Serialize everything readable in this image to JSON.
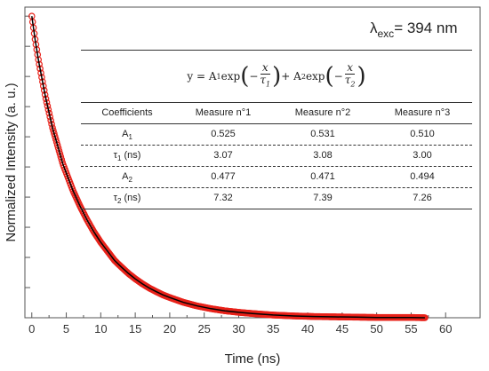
{
  "excitation": {
    "lambda": "λ",
    "subscript": "exc",
    "value": "= 394 nm"
  },
  "equation": {
    "lhs": "y = A",
    "a1_sub": "1",
    "exp1": " exp",
    "x1": "x",
    "tau1": "τ",
    "tau1_sub": "1",
    "plus": " + A",
    "a2_sub": "2",
    "exp2": " exp",
    "x2": "x",
    "tau2": "τ",
    "tau2_sub": "2"
  },
  "table": {
    "headers": [
      "Coefficients",
      "Measure n°1",
      "Measure n°2",
      "Measure n°3"
    ],
    "rows": [
      {
        "label": "A",
        "sub": "1",
        "unit": "",
        "values": [
          "0.525",
          "0.531",
          "0.510"
        ]
      },
      {
        "label": "τ",
        "sub": "1",
        "unit": " (ns)",
        "values": [
          "3.07",
          "3.08",
          "3.00"
        ]
      },
      {
        "label": "A",
        "sub": "2",
        "unit": "",
        "values": [
          "0.477",
          "0.471",
          "0.494"
        ]
      },
      {
        "label": "τ",
        "sub": "2",
        "unit": " (ns)",
        "values": [
          "7.32",
          "7.39",
          "7.26"
        ]
      }
    ]
  },
  "chart_data": {
    "type": "scatter",
    "xlabel": "Time (ns)",
    "ylabel": "Normalized Intensity (a. u.)",
    "xlim": [
      -1,
      65
    ],
    "ylim": [
      0,
      1.03
    ],
    "xticks": [
      "0",
      "5",
      "10",
      "15",
      "20",
      "25",
      "30",
      "35",
      "40",
      "45",
      "50",
      "55",
      "60"
    ],
    "show_yticks_labels": false,
    "series": [
      {
        "style": "markers",
        "color": "#e8221a",
        "x": [
          0,
          0.5,
          1,
          1.5,
          2,
          2.5,
          3,
          3.5,
          4,
          4.5,
          5,
          6,
          7,
          8,
          9,
          10,
          11,
          12,
          13,
          14,
          15,
          16,
          17,
          18,
          19,
          20,
          22,
          24,
          26,
          28,
          30,
          32,
          35,
          38,
          41,
          44,
          47,
          50,
          53,
          55,
          57
        ],
        "y": [
          1.0,
          0.92,
          0.85,
          0.79,
          0.73,
          0.68,
          0.63,
          0.59,
          0.55,
          0.51,
          0.48,
          0.42,
          0.37,
          0.325,
          0.285,
          0.25,
          0.22,
          0.19,
          0.168,
          0.147,
          0.129,
          0.113,
          0.099,
          0.087,
          0.076,
          0.067,
          0.051,
          0.039,
          0.03,
          0.023,
          0.018,
          0.014,
          0.009,
          0.006,
          0.004,
          0.003,
          0.002,
          0.001,
          0.001,
          0.001,
          0.0
        ]
      },
      {
        "style": "line",
        "color": "#000000",
        "x": [
          0,
          0.5,
          1,
          1.5,
          2,
          2.5,
          3,
          3.5,
          4,
          4.5,
          5,
          6,
          7,
          8,
          9,
          10,
          11,
          12,
          13,
          14,
          15,
          16,
          17,
          18,
          19,
          20,
          22,
          24,
          26,
          28,
          30,
          32,
          35,
          38,
          41,
          44,
          47,
          50,
          53,
          55,
          57
        ],
        "y": [
          1.0,
          0.92,
          0.85,
          0.79,
          0.73,
          0.68,
          0.63,
          0.59,
          0.55,
          0.51,
          0.48,
          0.42,
          0.37,
          0.325,
          0.285,
          0.25,
          0.22,
          0.19,
          0.168,
          0.147,
          0.129,
          0.113,
          0.099,
          0.087,
          0.076,
          0.067,
          0.051,
          0.039,
          0.03,
          0.023,
          0.018,
          0.014,
          0.009,
          0.006,
          0.004,
          0.003,
          0.002,
          0.001,
          0.001,
          0.001,
          0.0
        ]
      }
    ]
  }
}
